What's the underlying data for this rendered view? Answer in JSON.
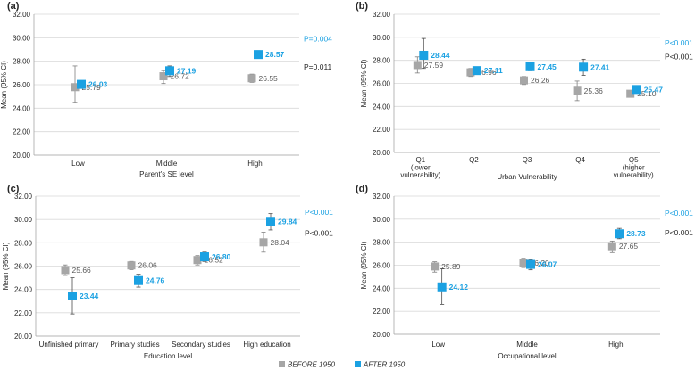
{
  "colors": {
    "before": "#a6a6a6",
    "after": "#1ba1e2",
    "before_label": "#595959",
    "after_label": "#1ba1e2",
    "grid": "#d9d9d9",
    "axis": "#a6a6a6",
    "text": "#262626",
    "pval_after": "#1ba1e2",
    "pval_before": "#262626"
  },
  "legend": {
    "before": "BEFORE 1950",
    "after": "AFTER 1950"
  },
  "chart_data": [
    {
      "type": "scatter",
      "panel": "(a)",
      "xlabel": "Parent's SE level",
      "ylabel": "Mean (95% CI)",
      "ylim": [
        20,
        32
      ],
      "yticks": [
        "20.00",
        "22.00",
        "24.00",
        "26.00",
        "28.00",
        "30.00",
        "32.00"
      ],
      "grid": true,
      "categories": [
        "Low",
        "Middle",
        "High"
      ],
      "series": [
        {
          "name": "BEFORE 1950",
          "values": [
            25.79,
            26.72,
            26.55
          ],
          "lower": [
            24.5,
            26.1,
            26.2
          ],
          "upper": [
            27.6,
            27.2,
            26.9
          ],
          "labels": [
            "25.79",
            "26.72",
            "26.55"
          ]
        },
        {
          "name": "AFTER 1950",
          "values": [
            26.03,
            27.19,
            28.57
          ],
          "lower": [
            25.7,
            26.7,
            28.3
          ],
          "upper": [
            26.3,
            27.6,
            28.9
          ],
          "labels": [
            "26.03",
            "27.19",
            "28.57"
          ]
        }
      ],
      "pvalues": {
        "after": "P=0.004",
        "before": "P=0.011"
      }
    },
    {
      "type": "scatter",
      "panel": "(b)",
      "xlabel": "Urban Vulnerability",
      "ylabel": "Mean (95% CI)",
      "ylim": [
        20,
        32
      ],
      "yticks": [
        "20.00",
        "22.00",
        "24.00",
        "26.00",
        "28.00",
        "30.00",
        "32.00"
      ],
      "grid": true,
      "categories": [
        [
          "Q1",
          "(lower",
          "vulnerability)"
        ],
        [
          "Q2"
        ],
        [
          "Q3"
        ],
        [
          "Q4"
        ],
        [
          "Q5",
          "(higher",
          "vulnerability)"
        ]
      ],
      "series": [
        {
          "name": "BEFORE 1950",
          "values": [
            27.59,
            26.96,
            26.26,
            25.36,
            25.1
          ],
          "lower": [
            26.9,
            26.6,
            25.9,
            24.5,
            24.95
          ],
          "upper": [
            28.3,
            27.3,
            26.6,
            26.2,
            25.25
          ],
          "labels": [
            "27.59",
            "26.96",
            "26.26",
            "25.36",
            "25.10"
          ]
        },
        {
          "name": "AFTER 1950",
          "values": [
            28.44,
            27.11,
            27.45,
            27.41,
            25.47
          ],
          "lower": [
            27.3,
            26.8,
            27.1,
            26.7,
            25.3
          ],
          "upper": [
            29.9,
            27.4,
            27.8,
            28.1,
            25.6
          ],
          "labels": [
            "28.44",
            "27.11",
            "27.45",
            "27.41",
            "25.47"
          ]
        }
      ],
      "pvalues": {
        "after": "P<0.001",
        "before": "P<0.001"
      }
    },
    {
      "type": "scatter",
      "panel": "(c)",
      "xlabel": "Education level",
      "ylabel": "Mean (95% CI)",
      "ylim": [
        20,
        32
      ],
      "yticks": [
        "20.00",
        "22.00",
        "24.00",
        "26.00",
        "28.00",
        "30.00",
        "32.00"
      ],
      "grid": true,
      "categories": [
        "Unfinished primary",
        "Primary studies",
        "Secondary studies",
        "High education"
      ],
      "series": [
        {
          "name": "BEFORE 1950",
          "values": [
            25.66,
            26.06,
            26.52,
            28.04
          ],
          "lower": [
            25.2,
            25.7,
            26.1,
            27.2
          ],
          "upper": [
            26.1,
            26.4,
            26.9,
            28.9
          ],
          "labels": [
            "25.66",
            "26.06",
            "26.52",
            "28.04"
          ]
        },
        {
          "name": "AFTER 1950",
          "values": [
            23.44,
            24.76,
            26.8,
            29.84
          ],
          "lower": [
            21.9,
            24.2,
            26.4,
            29.1
          ],
          "upper": [
            25.0,
            25.3,
            27.2,
            30.5
          ],
          "labels": [
            "23.44",
            "24.76",
            "26.80",
            "29.84"
          ]
        }
      ],
      "pvalues": {
        "after": "P<0.001",
        "before": "P<0.001"
      }
    },
    {
      "type": "scatter",
      "panel": "(d)",
      "xlabel": "Occupational level",
      "ylabel": "Mean (95% CI)",
      "ylim": [
        20,
        32
      ],
      "yticks": [
        "20.00",
        "22.00",
        "24.00",
        "26.00",
        "28.00",
        "30.00",
        "32.00"
      ],
      "grid": true,
      "categories": [
        "Low",
        "Middle",
        "High"
      ],
      "series": [
        {
          "name": "BEFORE 1950",
          "values": [
            25.89,
            26.2,
            27.65
          ],
          "lower": [
            25.4,
            25.8,
            27.1
          ],
          "upper": [
            26.3,
            26.6,
            28.1
          ],
          "labels": [
            "25.89",
            "26.20",
            "27.65"
          ]
        },
        {
          "name": "AFTER 1950",
          "values": [
            24.12,
            26.07,
            28.73
          ],
          "lower": [
            22.6,
            25.6,
            28.3
          ],
          "upper": [
            25.7,
            26.5,
            29.2
          ],
          "labels": [
            "24.12",
            "26.07",
            "28.73"
          ]
        }
      ],
      "pvalues": {
        "after": "P<0.001",
        "before": "P<0.001"
      }
    }
  ]
}
